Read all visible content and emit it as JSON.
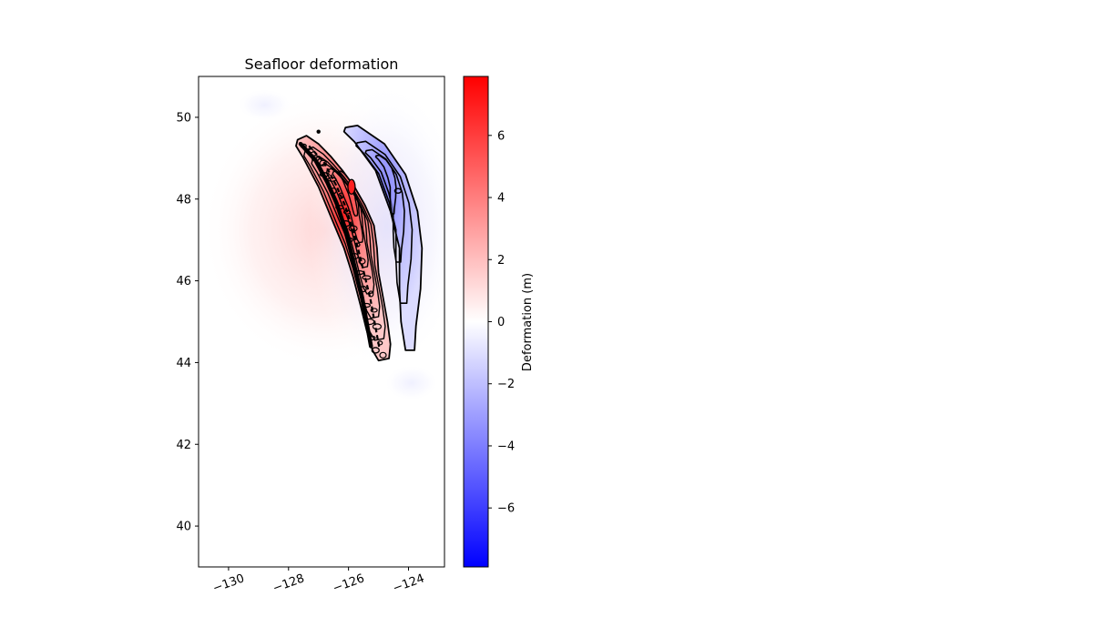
{
  "chart_data": {
    "type": "heatmap",
    "title": "Seafloor deformation",
    "xlabel": "",
    "ylabel": "",
    "xlim": [
      -131,
      -122.8
    ],
    "ylim": [
      39,
      51
    ],
    "x_ticks": [
      -130,
      -128,
      -126,
      -124
    ],
    "x_tick_labels": [
      "−130",
      "−128",
      "−126",
      "−124"
    ],
    "y_ticks": [
      40,
      42,
      44,
      46,
      48,
      50
    ],
    "y_tick_labels": [
      "40",
      "42",
      "44",
      "46",
      "48",
      "50"
    ],
    "colorbar": {
      "label": "Deformation (m)",
      "range": [
        -7.9,
        7.9
      ],
      "ticks": [
        -6,
        -4,
        -2,
        0,
        2,
        4,
        6
      ],
      "tick_labels": [
        "−6",
        "−4",
        "−2",
        "0",
        "2",
        "4",
        "6"
      ],
      "colormap": [
        "#0000ff",
        "#ffffff",
        "#ff0000"
      ]
    },
    "uplift_zone": {
      "sign": "positive",
      "outline": [
        [
          -127.7,
          49.45
        ],
        [
          -127.4,
          49.55
        ],
        [
          -127.0,
          49.35
        ],
        [
          -126.6,
          49.05
        ],
        [
          -126.2,
          48.7
        ],
        [
          -125.8,
          48.3
        ],
        [
          -125.45,
          47.85
        ],
        [
          -125.15,
          47.35
        ],
        [
          -125.05,
          46.8
        ],
        [
          -125.0,
          46.2
        ],
        [
          -124.85,
          45.6
        ],
        [
          -124.7,
          45.0
        ],
        [
          -124.6,
          44.45
        ],
        [
          -124.65,
          44.1
        ],
        [
          -125.0,
          44.05
        ],
        [
          -125.2,
          44.3
        ],
        [
          -125.4,
          44.8
        ],
        [
          -125.6,
          45.4
        ],
        [
          -125.85,
          46.1
        ],
        [
          -126.15,
          46.8
        ],
        [
          -126.55,
          47.5
        ],
        [
          -127.0,
          48.3
        ],
        [
          -127.5,
          49.0
        ],
        [
          -127.75,
          49.3
        ]
      ],
      "peak": [
        -125.9,
        48.3
      ],
      "peak_value": 7.0
    },
    "subsidence_zone": {
      "sign": "negative",
      "outline": [
        [
          -126.1,
          49.75
        ],
        [
          -125.7,
          49.8
        ],
        [
          -124.8,
          49.35
        ],
        [
          -124.1,
          48.6
        ],
        [
          -123.7,
          47.7
        ],
        [
          -123.55,
          46.8
        ],
        [
          -123.6,
          45.8
        ],
        [
          -123.75,
          44.9
        ],
        [
          -123.8,
          44.3
        ],
        [
          -124.1,
          44.3
        ],
        [
          -124.25,
          45.0
        ],
        [
          -124.3,
          45.8
        ],
        [
          -124.3,
          46.8
        ],
        [
          -124.6,
          47.7
        ],
        [
          -125.1,
          48.7
        ],
        [
          -125.8,
          49.4
        ],
        [
          -126.15,
          49.65
        ]
      ],
      "peak": [
        -124.35,
        48.3
      ],
      "peak_value": -3.0
    },
    "legend": "none",
    "grid": false
  }
}
